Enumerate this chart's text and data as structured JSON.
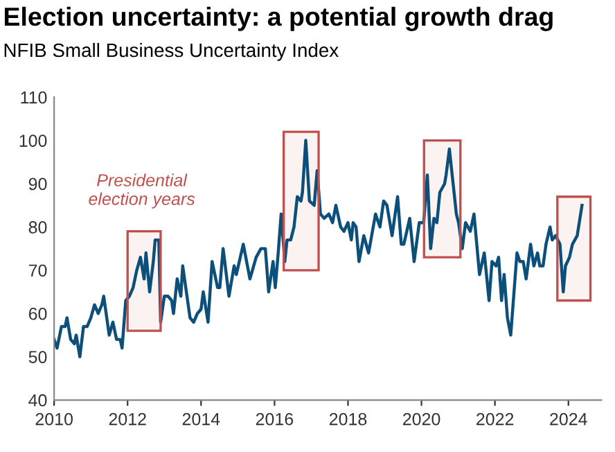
{
  "chart_data": {
    "type": "line",
    "title": "Election uncertainty: a potential growth drag",
    "subtitle": "NFIB Small Business Uncertainty Index",
    "x": [
      2010.0,
      2010.08,
      2010.2,
      2010.3,
      2010.35,
      2010.45,
      2010.55,
      2010.6,
      2010.7,
      2010.8,
      2010.9,
      2011.0,
      2011.1,
      2011.2,
      2011.3,
      2011.35,
      2011.45,
      2011.5,
      2011.6,
      2011.7,
      2011.8,
      2011.85,
      2011.95,
      2012.05,
      2012.15,
      2012.25,
      2012.35,
      2012.45,
      2012.5,
      2012.6,
      2012.7,
      2012.75,
      2012.85,
      2012.9,
      2013.0,
      2013.1,
      2013.2,
      2013.25,
      2013.35,
      2013.45,
      2013.5,
      2013.6,
      2013.7,
      2013.8,
      2013.9,
      2014.0,
      2014.06,
      2014.19,
      2014.3,
      2014.45,
      2014.51,
      2014.6,
      2014.76,
      2014.9,
      2014.96,
      2015.15,
      2015.33,
      2015.5,
      2015.63,
      2015.75,
      2015.84,
      2015.96,
      2016.02,
      2016.1,
      2016.18,
      2016.28,
      2016.34,
      2016.44,
      2016.53,
      2016.62,
      2016.72,
      2016.76,
      2016.85,
      2016.95,
      2017.08,
      2017.16,
      2017.25,
      2017.35,
      2017.48,
      2017.58,
      2017.67,
      2017.8,
      2017.89,
      2018.0,
      2018.09,
      2018.14,
      2018.22,
      2018.3,
      2018.43,
      2018.56,
      2018.75,
      2018.87,
      2018.97,
      2019.06,
      2019.2,
      2019.35,
      2019.45,
      2019.52,
      2019.68,
      2019.8,
      2019.94,
      2020.06,
      2020.16,
      2020.25,
      2020.34,
      2020.42,
      2020.5,
      2020.63,
      2020.67,
      2020.76,
      2020.95,
      2021.01,
      2021.11,
      2021.2,
      2021.33,
      2021.43,
      2021.58,
      2021.71,
      2021.84,
      2021.92,
      2022.03,
      2022.1,
      2022.18,
      2022.25,
      2022.34,
      2022.43,
      2022.6,
      2022.68,
      2022.77,
      2022.85,
      2022.97,
      2023.06,
      2023.16,
      2023.22,
      2023.31,
      2023.39,
      2023.5,
      2023.56,
      2023.65,
      2023.77,
      2023.86,
      2023.92,
      2024.03,
      2024.11,
      2024.24,
      2024.37
    ],
    "series": [
      {
        "color": "#0b4f7a",
        "values": [
          54,
          52,
          57,
          57,
          59,
          54,
          53,
          55,
          50,
          57,
          57,
          59,
          62,
          60,
          62,
          64,
          58,
          55,
          58,
          54,
          54,
          52,
          63,
          64,
          66,
          70,
          73,
          68,
          74,
          65,
          72,
          77,
          77,
          58,
          64,
          64,
          63,
          60,
          68,
          64,
          71,
          65,
          59,
          58,
          60,
          61,
          65,
          58,
          72,
          66,
          66,
          75,
          64,
          71,
          69,
          76,
          68,
          73,
          75,
          75,
          65,
          72,
          66,
          74,
          83,
          72,
          77,
          77,
          80,
          87,
          86,
          88,
          100,
          86,
          85,
          93,
          83,
          82,
          83,
          81,
          85,
          80,
          79,
          81,
          77,
          81,
          80,
          72,
          78,
          74,
          83,
          80,
          86,
          85,
          78,
          87,
          76,
          76,
          82,
          72,
          81,
          81,
          92,
          75,
          82,
          81,
          88,
          90,
          92,
          98,
          83,
          81,
          75,
          81,
          79,
          83,
          69,
          74,
          63,
          72,
          71,
          73,
          63,
          69,
          59,
          55,
          74,
          72,
          72,
          68,
          76,
          71,
          74,
          71,
          71,
          76,
          80,
          77,
          78,
          76,
          65,
          71,
          73,
          76,
          78,
          85
        ]
      }
    ],
    "xlim": [
      2010,
      2024.9
    ],
    "xticks": [
      2010,
      2012,
      2014,
      2016,
      2018,
      2020,
      2022,
      2024
    ],
    "ylim": [
      40,
      110
    ],
    "yticks": [
      40,
      50,
      60,
      70,
      80,
      90,
      100,
      110
    ],
    "bands": [
      {
        "axis": "x",
        "from": 2012.0,
        "to": 2012.9,
        "color": "#c0504d"
      },
      {
        "axis": "x",
        "from": 2016.25,
        "to": 2017.2,
        "color": "#c0504d"
      },
      {
        "axis": "x",
        "from": 2020.07,
        "to": 2021.06,
        "color": "#c0504d"
      },
      {
        "axis": "x",
        "from": 2023.7,
        "to": 2024.6,
        "color": "#c0504d"
      }
    ],
    "annotations": [
      "Presidential\nelection years"
    ],
    "grid": false,
    "legend": false,
    "marker": "none",
    "line_style": "solid"
  }
}
